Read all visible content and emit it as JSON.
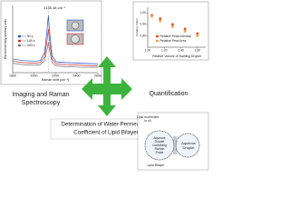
{
  "chart_data": [
    {
      "type": "line",
      "annotation": "2135.48 cm⁻¹",
      "x_label": "Raman shift (cm⁻¹)",
      "y_label": "Raman Intensity arbitrary units",
      "x": [
        1800,
        1900,
        2000,
        2060,
        2100,
        2120,
        2135,
        2150,
        2170,
        2210,
        2300,
        2450,
        2600
      ],
      "series": [
        {
          "name": "t = 30 s",
          "color": "#1f4fd0",
          "values": [
            0.2,
            0.18,
            0.17,
            0.18,
            0.3,
            0.6,
            0.85,
            0.55,
            0.25,
            0.16,
            0.15,
            0.14,
            0.13
          ]
        },
        {
          "name": "t = 145 s",
          "color": "#d0302a",
          "values": [
            0.17,
            0.15,
            0.14,
            0.15,
            0.24,
            0.45,
            0.65,
            0.42,
            0.2,
            0.13,
            0.12,
            0.11,
            0.1
          ]
        },
        {
          "name": "t = 340 s",
          "color": "#707070",
          "values": [
            0.14,
            0.12,
            0.11,
            0.12,
            0.18,
            0.32,
            0.45,
            0.3,
            0.15,
            0.1,
            0.09,
            0.08,
            0.08
          ]
        }
      ],
      "xlim": [
        1800,
        2600
      ],
      "xticks": [
        1800,
        2000,
        2200,
        2400,
        2600
      ],
      "ylim": [
        0,
        1
      ]
    },
    {
      "type": "scatter",
      "x_label": "Relative Volume of Swelling Droplet",
      "y_label": "Relative Value",
      "x": [
        1.05,
        1.15,
        1.3,
        1.45,
        1.6
      ],
      "series": [
        {
          "name": "Relative Peak Intensity",
          "color": "#e8541e",
          "values": [
            0.98,
            0.95,
            0.9,
            0.86,
            0.82
          ]
        },
        {
          "name": "Relative Peak Area",
          "color": "#f2a15a",
          "values": [
            0.97,
            0.93,
            0.88,
            0.84,
            0.8
          ]
        }
      ],
      "xlim": [
        1.0,
        1.7
      ],
      "xticks": [
        {
          "value": 1,
          "label": "1.00"
        },
        {
          "value": 1.2,
          "label": "1.20"
        },
        {
          "value": 1.4,
          "label": "1.40"
        },
        {
          "value": 1.6,
          "label": "1.60"
        }
      ],
      "ylim": [
        0.7,
        1.05
      ],
      "yticks": [
        {
          "value": 0.8,
          "label": "0.80"
        },
        {
          "value": 0.9,
          "label": "0.90"
        },
        {
          "value": 1,
          "label": "1.00"
        }
      ]
    }
  ],
  "labels": {
    "imaging": [
      "Imaging and Raman",
      "Spectroscopy"
    ],
    "quantification": "Quantification",
    "determination": [
      "Determination of Water Permeability",
      "Coefficient of Lipid Bilayer"
    ]
  },
  "diagram": {
    "oil": [
      "Lipid molecules",
      "in oil"
    ],
    "probe_droplet": [
      "Aqueous",
      "Droplet",
      "Containing",
      "Raman",
      "Probe"
    ],
    "droplet": [
      "Aqueous",
      "Droplet"
    ],
    "bilayer": "Lipid Bilayer"
  }
}
